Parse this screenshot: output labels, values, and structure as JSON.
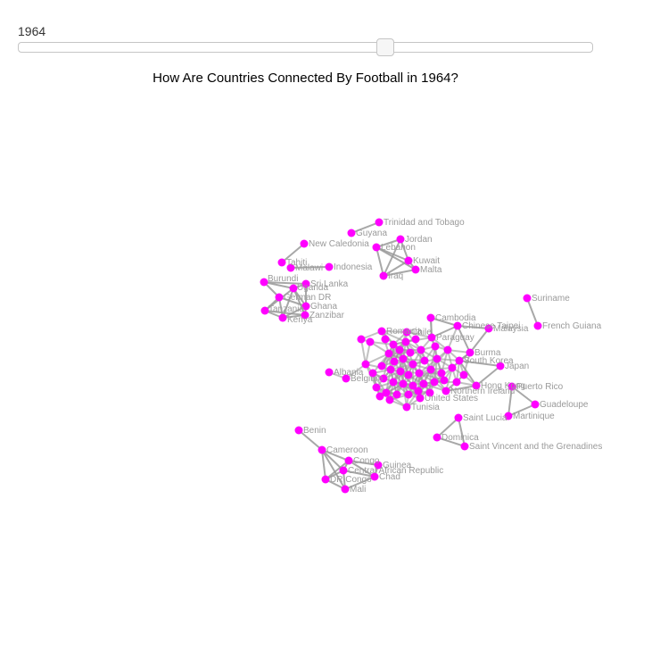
{
  "slider": {
    "year_label": "1964",
    "min": 1872,
    "max": 2016,
    "value": 1964
  },
  "title": "How Are Countries Connected By Football in 1964?",
  "colors": {
    "node": "#ff00ff",
    "link": "#999999",
    "label": "#9a9a9a"
  },
  "chart_data": {
    "type": "network",
    "nodes": [
      {
        "id": "tt",
        "label": "Trinidad and Tobago"
      },
      {
        "id": "gy",
        "label": "Guyana"
      },
      {
        "id": "jo",
        "label": "Jordan"
      },
      {
        "id": "lb",
        "label": "Lebanon"
      },
      {
        "id": "kw",
        "label": "Kuwait"
      },
      {
        "id": "mt",
        "label": "Malta"
      },
      {
        "id": "iq",
        "label": "Iraq"
      },
      {
        "id": "nc",
        "label": "New Caledonia"
      },
      {
        "id": "ta",
        "label": "Tahiti"
      },
      {
        "id": "mw",
        "label": "Malawi"
      },
      {
        "id": "id",
        "label": "Indonesia"
      },
      {
        "id": "bi",
        "label": "Burundi"
      },
      {
        "id": "lk",
        "label": "Sri Lanka"
      },
      {
        "id": "ug",
        "label": "Uganda"
      },
      {
        "id": "de",
        "label": "German DR"
      },
      {
        "id": "gh",
        "label": "Ghana"
      },
      {
        "id": "tz",
        "label": "Tanzania"
      },
      {
        "id": "zz",
        "label": "Zanzibar"
      },
      {
        "id": "ke",
        "label": "Kenya"
      },
      {
        "id": "sr",
        "label": "Suriname"
      },
      {
        "id": "gf",
        "label": "French Guiana"
      },
      {
        "id": "kh",
        "label": "Cambodia"
      },
      {
        "id": "tw",
        "label": "Chinese Taipei"
      },
      {
        "id": "my",
        "label": "Malaysia"
      },
      {
        "id": "py",
        "label": "Paraguay"
      },
      {
        "id": "ro",
        "label": "Romania"
      },
      {
        "id": "cl",
        "label": "Chile"
      },
      {
        "id": "mm",
        "label": "Burma"
      },
      {
        "id": "kr",
        "label": "South Korea"
      },
      {
        "id": "jp",
        "label": "Japan"
      },
      {
        "id": "hk",
        "label": "Hong Kong"
      },
      {
        "id": "ie",
        "label": "Northern Ireland"
      },
      {
        "id": "us",
        "label": "United States"
      },
      {
        "id": "tn",
        "label": "Tunisia"
      },
      {
        "id": "be",
        "label": "Belgium"
      },
      {
        "id": "al",
        "label": "Albania"
      },
      {
        "id": "pr",
        "label": "Puerto Rico"
      },
      {
        "id": "gp",
        "label": "Guadeloupe"
      },
      {
        "id": "mq",
        "label": "Martinique"
      },
      {
        "id": "lc",
        "label": "Saint Lucia"
      },
      {
        "id": "dm",
        "label": "Dominica"
      },
      {
        "id": "vc",
        "label": "Saint Vincent and the Grenadines"
      },
      {
        "id": "bj",
        "label": "Benin"
      },
      {
        "id": "cm",
        "label": "Cameroon"
      },
      {
        "id": "cg",
        "label": "Congo"
      },
      {
        "id": "gn",
        "label": "Guinea"
      },
      {
        "id": "cf",
        "label": "Central African Republic"
      },
      {
        "id": "td",
        "label": "Chad"
      },
      {
        "id": "cd",
        "label": "DR Congo"
      },
      {
        "id": "ml",
        "label": "Mali"
      }
    ]
  }
}
